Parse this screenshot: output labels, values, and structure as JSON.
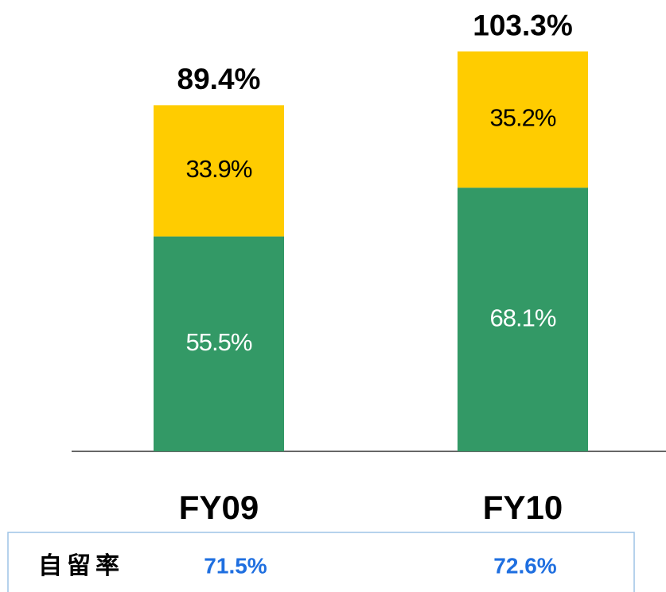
{
  "chart_data": {
    "type": "stacked_bar",
    "categories": [
      "FY09",
      "FY10"
    ],
    "series": [
      {
        "color": "#339966",
        "values": [
          55.5,
          68.1
        ],
        "value_labels": [
          "55.5%",
          "68.1%"
        ],
        "label_color": "#ffffff"
      },
      {
        "color": "#ffcc00",
        "values": [
          33.9,
          35.2
        ],
        "value_labels": [
          "33.9%",
          "35.2%"
        ],
        "label_color": "#000000"
      }
    ],
    "totals": {
      "values": [
        89.4,
        103.3
      ],
      "value_labels": [
        "89.4%",
        "103.3%"
      ]
    },
    "ylim": [
      0,
      110
    ]
  },
  "table": {
    "label": "自留率",
    "values": [
      "71.5%",
      "72.6%"
    ]
  }
}
